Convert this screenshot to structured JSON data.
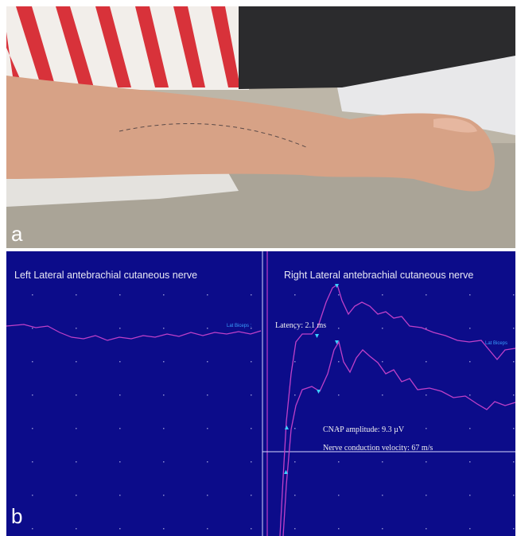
{
  "panel_a": {
    "label": "a"
  },
  "panel_b": {
    "label": "b",
    "left_title": "Left Lateral antebrachial cutaneous nerve",
    "right_title": "Right Lateral antebrachial cutaneous nerve",
    "left_marker": "Lat Biceps :",
    "right_marker": "Lat Biceps",
    "latency": "Latency: 2.1 ms",
    "amplitude": "CNAP amplitude: 9.3 µV",
    "velocity": "Nerve conduction velocity: 67 m/s"
  }
}
